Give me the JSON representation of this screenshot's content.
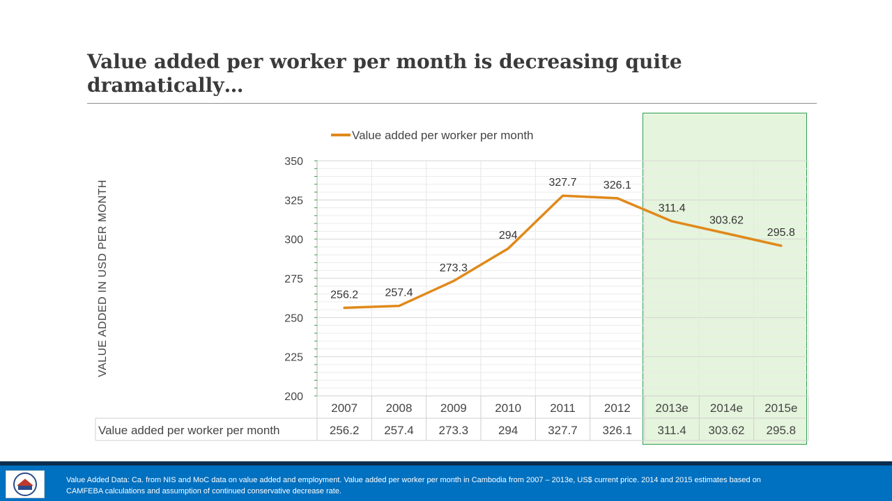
{
  "slide": {
    "title": "Value added per worker per month is decreasing quite dramatically…",
    "footer_note": "Value Added Data: Ca. from NIS and MoC data on value added and employment. Value added per worker per month in Cambodia from 2007 – 2013e, US$ current price. 2014 and 2015 estimates based on CAMFEBA calculations and assumption of continued conservative decrease rate."
  },
  "colors": {
    "line": "#e0891b",
    "highlight_fill": "#e5f4dc",
    "highlight_border": "#2e9e4f",
    "footer": "#0070c0"
  },
  "chart_data": {
    "type": "line",
    "title": "",
    "legend": "Value added per  worker per month",
    "legend_position": "top",
    "ylabel": "VALUE ADDED IN USD PER MONTH",
    "xlabel": "",
    "ylim": [
      200,
      350
    ],
    "yticks": [
      200,
      225,
      250,
      275,
      300,
      325,
      350
    ],
    "categories": [
      "2007",
      "2008",
      "2009",
      "2010",
      "2011",
      "2012",
      "2013e",
      "2014e",
      "2015e"
    ],
    "series": [
      {
        "name": "Value added per  worker per month",
        "values": [
          256.2,
          257.4,
          273.3,
          294,
          327.7,
          326.1,
          311.4,
          303.62,
          295.8
        ],
        "labels": [
          "256.2",
          "257.4",
          "273.3",
          "294",
          "327.7",
          "326.1",
          "311.4",
          "303.62",
          "295.8"
        ]
      }
    ],
    "highlighted_categories": [
      "2013e",
      "2014e",
      "2015e"
    ],
    "data_table": {
      "row_header": "Value added per  worker per month",
      "values": [
        "256.2",
        "257.4",
        "273.3",
        "294",
        "327.7",
        "326.1",
        "311.4",
        "303.62",
        "295.8"
      ]
    }
  }
}
